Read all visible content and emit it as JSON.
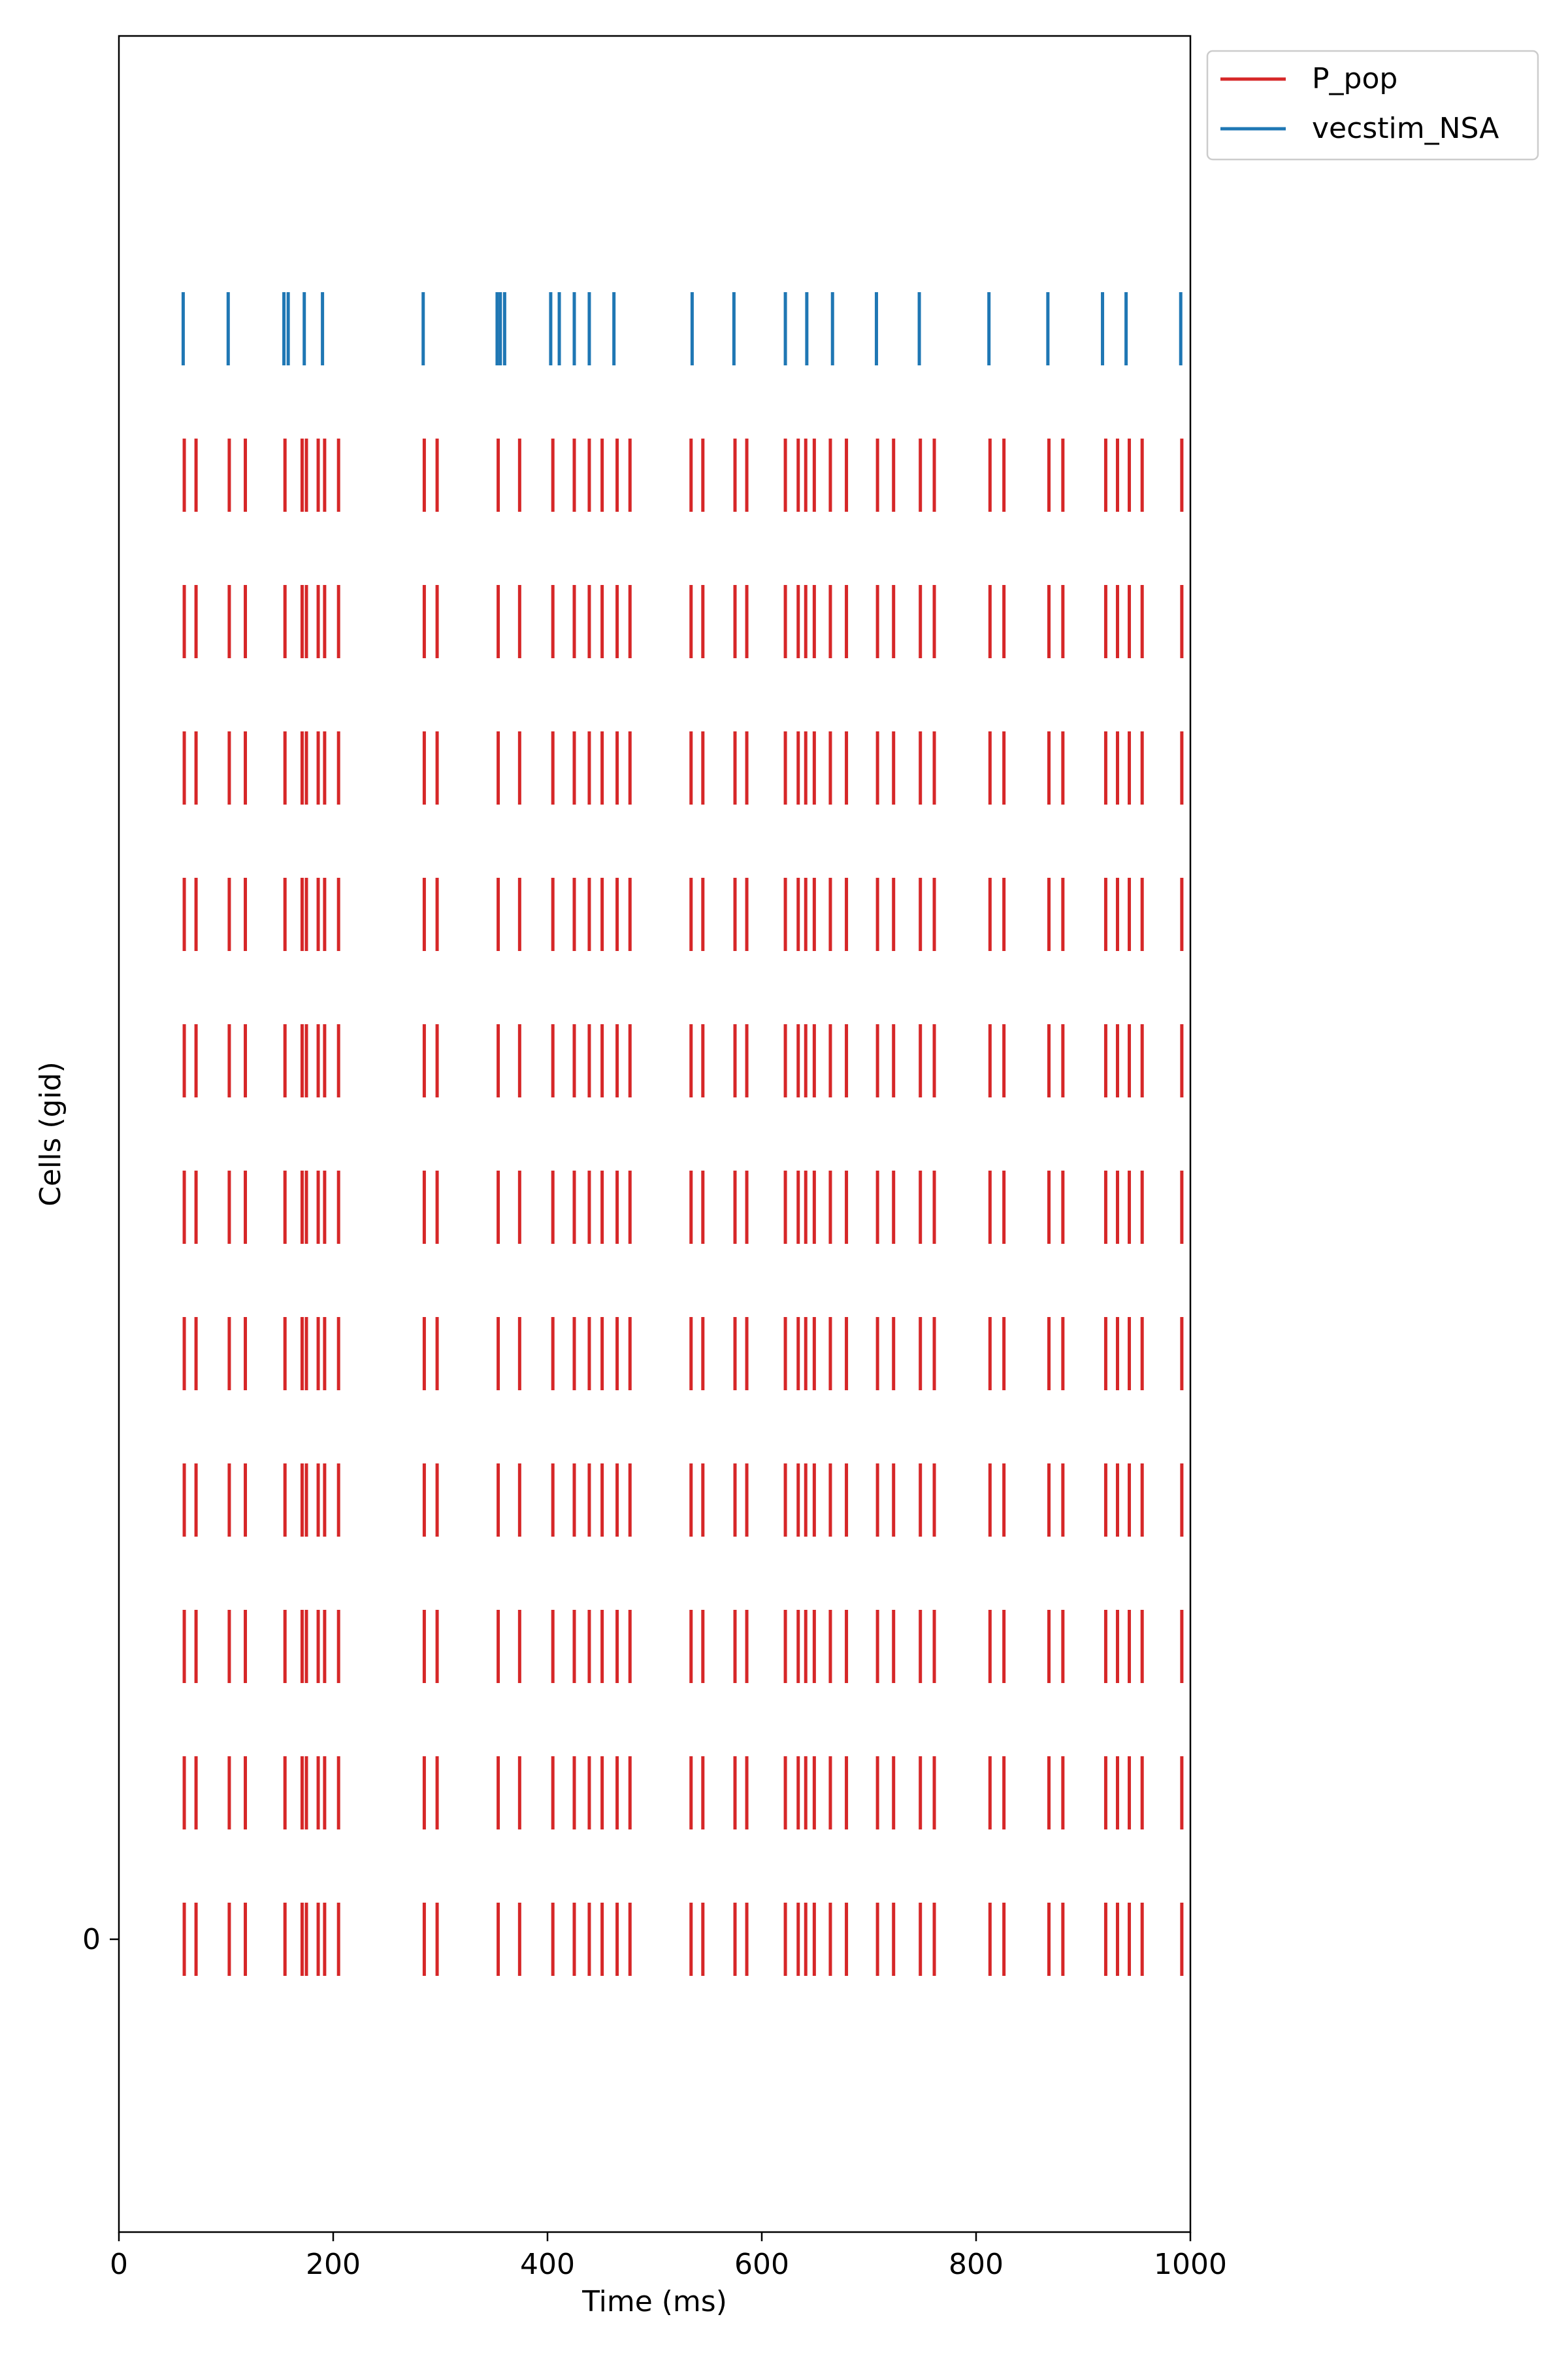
{
  "chart_data": {
    "type": "scatter",
    "subtype": "raster",
    "xlabel": "Time (ms)",
    "ylabel": "Cells (gid)",
    "xlim": [
      0,
      1000
    ],
    "ylim": [
      -2,
      13
    ],
    "xticks": [
      0,
      200,
      400,
      600,
      800,
      1000
    ],
    "yticks": [
      0
    ],
    "legend": {
      "placement": "outside-top-right",
      "entries": [
        {
          "label": "P_pop",
          "color": "#d62728"
        },
        {
          "label": "vecstim_NSA",
          "color": "#1f77b4"
        }
      ]
    },
    "series": [
      {
        "name": "P_pop",
        "color": "#d62728",
        "cells": [
          0,
          1,
          2,
          3,
          4,
          5,
          6,
          7,
          8,
          9,
          10
        ],
        "spike_times": [
          61,
          72,
          103,
          118,
          155,
          171,
          175,
          186,
          192,
          205,
          285,
          297,
          354,
          374,
          405,
          425,
          439,
          451,
          465,
          477,
          534,
          545,
          575,
          586,
          622,
          634,
          641,
          649,
          664,
          679,
          708,
          723,
          748,
          761,
          813,
          826,
          868,
          881,
          921,
          932,
          943,
          955,
          992
        ]
      },
      {
        "name": "vecstim_NSA",
        "color": "#1f77b4",
        "cells": [
          11
        ],
        "spike_times": [
          60,
          102,
          154,
          158,
          173,
          190,
          284,
          353,
          356,
          360,
          403,
          411,
          425,
          439,
          462,
          535,
          574,
          622,
          642,
          666,
          707,
          747,
          812,
          867,
          918,
          940,
          991
        ]
      }
    ]
  }
}
